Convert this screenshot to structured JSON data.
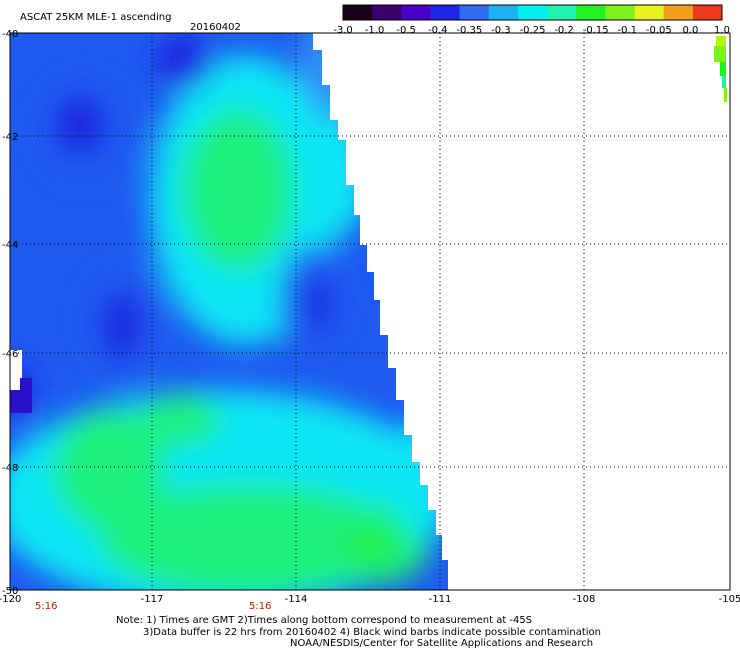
{
  "header": {
    "product": "ASCAT 25KM MLE-1 ascending",
    "date": "20160402"
  },
  "colorbar": {
    "labels": [
      "-3.0",
      "-1.0",
      "-0.5",
      "-0.4",
      "-0.35",
      "-0.3",
      "-0.25",
      "-0.2",
      "-0.15",
      "-0.1",
      "-0.05",
      "0.0",
      "1.0"
    ],
    "colors": [
      "#1a001a",
      "#3a006e",
      "#4b00c8",
      "#1f25e6",
      "#2f6cf2",
      "#1bb2f6",
      "#00f0f0",
      "#22f2b0",
      "#22f222",
      "#7cf21c",
      "#e8f21c",
      "#f2a01c",
      "#ee3a1a"
    ]
  },
  "map": {
    "lat_labels": [
      "-40",
      "-42",
      "-44",
      "-46",
      "-48",
      "-50"
    ],
    "lon_labels": [
      "-120",
      "-117",
      "-114",
      "-111",
      "-108",
      "-105"
    ],
    "time_labels": [
      "5:16",
      "5:16"
    ],
    "palette": {
      "deep_blue": "#1a22e0",
      "blue": "#1f5af0",
      "light_blue": "#2f8ff5",
      "cyan": "#11e6f4",
      "green": "#1ef07a",
      "bright_green": "#22f03a"
    }
  },
  "notes": [
    "Note: 1) Times are GMT 2)Times along bottom correspond to measurement at -45S",
    "3)Data buffer is 22 hrs from 20160402 4) Black wind barbs indicate possible contamination",
    "NOAA/NESDIS/Center for Satellite Applications and Research"
  ]
}
